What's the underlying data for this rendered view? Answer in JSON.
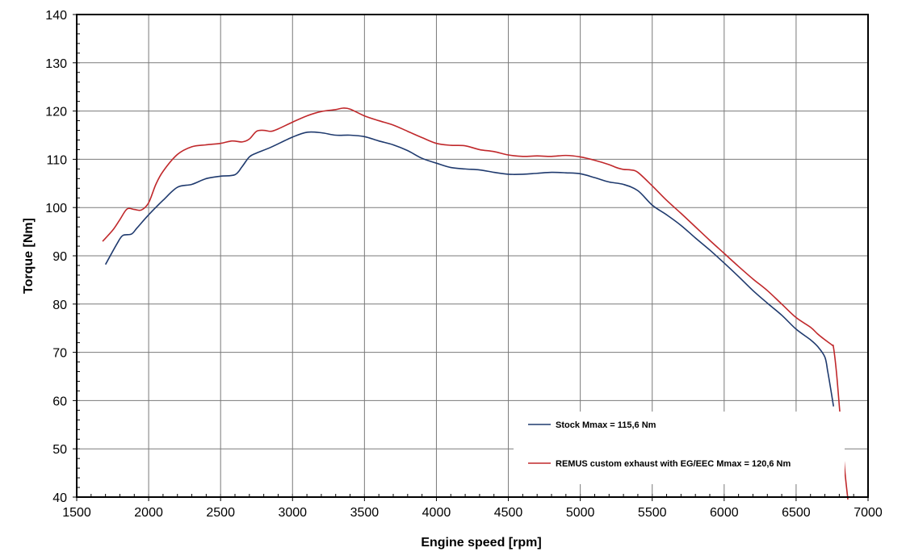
{
  "chart_data": {
    "type": "line",
    "xlabel": "Engine speed [rpm]",
    "ylabel": "Torque [Nm]",
    "xlim": [
      1500,
      7000
    ],
    "ylim": [
      40,
      140
    ],
    "xticks": [
      1500,
      2000,
      2500,
      3000,
      3500,
      4000,
      4500,
      5000,
      5500,
      6000,
      6500,
      7000
    ],
    "yticks": [
      40,
      50,
      60,
      70,
      80,
      90,
      100,
      110,
      120,
      130,
      140
    ],
    "x_minor_step": 100,
    "grid": true,
    "legend_position": "bottom-right",
    "series": [
      {
        "name": "Stock Mmax = 115,6 Nm",
        "color": "#1f3a6e",
        "x": [
          1700,
          1780,
          1820,
          1880,
          1920,
          2000,
          2100,
          2200,
          2300,
          2400,
          2500,
          2600,
          2650,
          2700,
          2750,
          2850,
          3000,
          3100,
          3200,
          3300,
          3400,
          3500,
          3600,
          3700,
          3800,
          3900,
          4000,
          4100,
          4200,
          4300,
          4400,
          4500,
          4600,
          4700,
          4800,
          4900,
          5000,
          5100,
          5200,
          5300,
          5400,
          5500,
          5600,
          5700,
          5800,
          5900,
          6000,
          6100,
          6200,
          6300,
          6400,
          6500,
          6600,
          6650,
          6700,
          6720,
          6740,
          6760
        ],
        "y": [
          88.2,
          92.5,
          94.2,
          94.5,
          95.8,
          98.5,
          101.5,
          104.2,
          104.8,
          106.0,
          106.5,
          106.8,
          108.5,
          110.5,
          111.3,
          112.5,
          114.6,
          115.6,
          115.5,
          115.0,
          115.0,
          114.7,
          113.8,
          113.0,
          111.8,
          110.2,
          109.2,
          108.3,
          108.0,
          107.8,
          107.3,
          106.9,
          106.9,
          107.1,
          107.3,
          107.2,
          107.0,
          106.2,
          105.3,
          104.8,
          103.5,
          100.5,
          98.5,
          96.3,
          93.7,
          91.2,
          88.5,
          85.7,
          82.8,
          80.2,
          77.7,
          74.8,
          72.6,
          71.2,
          69.0,
          66.0,
          62.5,
          58.8
        ]
      },
      {
        "name": "REMUS custom exhaust with EG/EEC Mmax = 120,6 Nm",
        "color": "#c0282b",
        "x": [
          1680,
          1750,
          1800,
          1850,
          1900,
          1950,
          2000,
          2050,
          2100,
          2200,
          2300,
          2400,
          2500,
          2580,
          2650,
          2700,
          2750,
          2800,
          2850,
          2900,
          3000,
          3100,
          3200,
          3300,
          3350,
          3400,
          3500,
          3600,
          3700,
          3800,
          3900,
          4000,
          4100,
          4200,
          4300,
          4400,
          4500,
          4600,
          4700,
          4800,
          4900,
          5000,
          5100,
          5200,
          5250,
          5300,
          5350,
          5400,
          5500,
          5600,
          5700,
          5800,
          5900,
          6000,
          6100,
          6200,
          6300,
          6400,
          6500,
          6600,
          6650,
          6700,
          6750,
          6760,
          6780,
          6800,
          6820,
          6840,
          6860
        ],
        "y": [
          93.0,
          95.3,
          97.5,
          99.7,
          99.6,
          99.5,
          101.0,
          104.8,
          107.5,
          111.0,
          112.6,
          113.0,
          113.3,
          113.8,
          113.6,
          114.2,
          115.8,
          116.0,
          115.8,
          116.3,
          117.7,
          119.0,
          119.9,
          120.3,
          120.6,
          120.4,
          119.0,
          118.0,
          117.1,
          115.8,
          114.5,
          113.3,
          112.9,
          112.8,
          112.0,
          111.6,
          110.9,
          110.6,
          110.7,
          110.6,
          110.8,
          110.5,
          109.8,
          108.9,
          108.3,
          107.9,
          107.8,
          107.3,
          104.5,
          101.5,
          98.8,
          96.0,
          93.2,
          90.5,
          87.8,
          85.2,
          82.8,
          80.0,
          77.2,
          75.2,
          73.8,
          72.6,
          71.5,
          71.0,
          66.0,
          59.0,
          52.0,
          45.0,
          39.5
        ]
      }
    ]
  }
}
